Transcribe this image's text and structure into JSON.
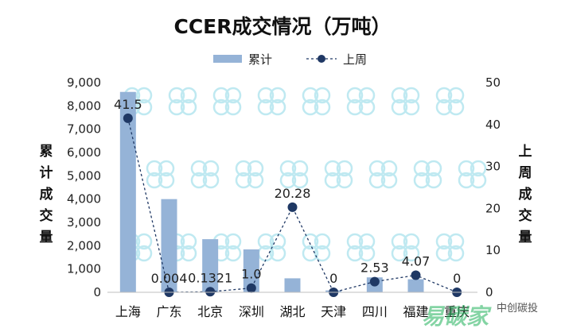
{
  "chart_data": {
    "type": "bar",
    "title": "CCER成交情况（万吨）",
    "categories": [
      "上海",
      "广东",
      "北京",
      "深圳",
      "湖北",
      "天津",
      "四川",
      "福建",
      "重庆"
    ],
    "series": [
      {
        "name": "累计",
        "type": "bar",
        "axis": "left",
        "color": "#95b3d7",
        "values": [
          8600,
          4000,
          2280,
          1840,
          600,
          80,
          640,
          560,
          20
        ]
      },
      {
        "name": "上周",
        "type": "line",
        "axis": "right",
        "color": "#1f3864",
        "line_style": "dashed",
        "marker": "circle",
        "values": [
          41.5,
          0.004,
          0.1321,
          1.0,
          20.28,
          0,
          2.53,
          4.07,
          0
        ],
        "data_labels": [
          "41.5",
          "0.004",
          "0.1321",
          "1.0",
          "20.28",
          "0",
          "2.53",
          "4.07",
          "0"
        ]
      }
    ],
    "y_left": {
      "label": "累计成交量",
      "range": [
        0,
        9000
      ],
      "ticks": [
        "0",
        "1,000",
        "2,000",
        "3,000",
        "4,000",
        "5,000",
        "6,000",
        "7,000",
        "8,000",
        "9,000"
      ]
    },
    "y_right": {
      "label": "上周成交量",
      "range": [
        0,
        50
      ],
      "ticks": [
        "0",
        "10",
        "20",
        "30",
        "40",
        "50"
      ]
    },
    "legend": {
      "position": "top",
      "items": [
        "累计",
        "上周"
      ]
    },
    "grid": false
  },
  "watermark": {
    "text": "易碳家",
    "brand": "中创碳投"
  }
}
